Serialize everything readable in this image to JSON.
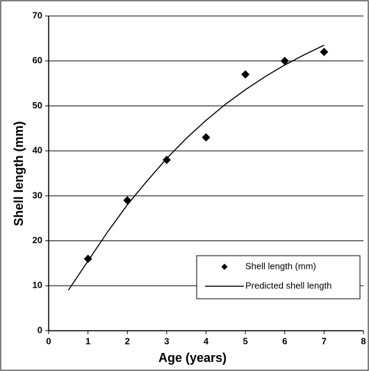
{
  "chart_data": {
    "type": "scatter",
    "x_label": "Age (years)",
    "y_label": "Shell length (mm)",
    "xlim": [
      0,
      8
    ],
    "ylim": [
      0,
      70
    ],
    "xticks": [
      0,
      1,
      2,
      3,
      4,
      5,
      6,
      7,
      8
    ],
    "yticks": [
      0,
      10,
      20,
      30,
      40,
      50,
      60,
      70
    ],
    "grid": true,
    "legend": "lower right",
    "series": [
      {
        "name": "Shell length (mm)",
        "type": "scatter",
        "color": "#000000",
        "x": [
          1,
          2,
          3,
          4,
          5,
          6,
          7
        ],
        "values": [
          16,
          29,
          38,
          43,
          57,
          60,
          62
        ]
      },
      {
        "name": "Predicted shell length",
        "type": "line",
        "color": "#000000",
        "x": [
          0.5,
          1,
          1.5,
          2,
          2.5,
          3,
          3.5,
          4,
          4.5,
          5,
          5.5,
          6,
          6.5,
          7
        ],
        "values": [
          9,
          15.5,
          22,
          28,
          33.3,
          38.3,
          42.8,
          46.8,
          50.4,
          53.6,
          56.5,
          59.1,
          61.4,
          63.5
        ]
      }
    ]
  }
}
